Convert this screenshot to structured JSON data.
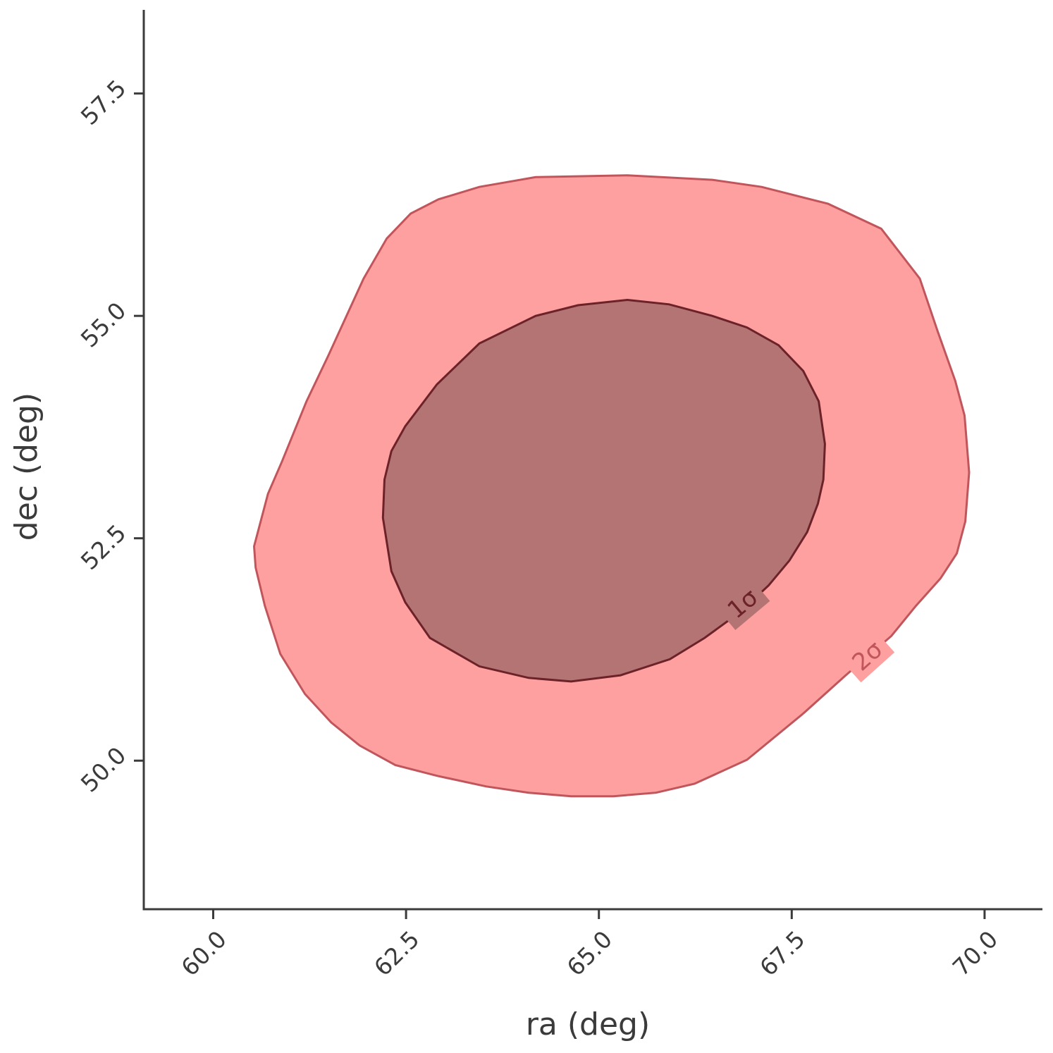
{
  "chart_data": {
    "type": "contour",
    "xlabel": "ra (deg)",
    "ylabel": "dec (deg)",
    "xlim": [
      59.1,
      70.75
    ],
    "ylim": [
      48.33,
      58.44
    ],
    "xticks": [
      {
        "value": 60,
        "label": "60.0"
      },
      62.5,
      {
        "value": 65,
        "label": "65.0"
      },
      67.5,
      {
        "value": 70,
        "label": "70.0"
      }
    ],
    "yticks": [
      {
        "value": 50,
        "label": "50.0"
      },
      52.5,
      {
        "value": 55,
        "label": "55.0"
      },
      57.5
    ],
    "series": [
      {
        "name": "2σ",
        "color": "#fea0a0",
        "edgecolor": "#c0565c",
        "x": [
          60.53,
          60.71,
          60.89,
          61.21,
          61.49,
          61.95,
          62.25,
          62.56,
          62.92,
          63.45,
          64.18,
          65.37,
          66.47,
          67.11,
          67.97,
          68.66,
          69.16,
          69.39,
          69.62,
          69.74,
          69.8,
          69.75,
          69.64,
          69.43,
          69.11,
          68.79,
          68.2,
          67.65,
          66.92,
          66.24,
          65.74,
          65.19,
          64.64,
          64.09,
          63.54,
          62.9,
          62.36,
          61.9,
          61.53,
          61.19,
          60.87,
          60.67,
          60.55
        ],
        "y": [
          52.41,
          53.0,
          53.36,
          54.04,
          54.55,
          55.42,
          55.87,
          56.15,
          56.31,
          56.45,
          56.56,
          56.58,
          56.53,
          56.45,
          56.26,
          55.98,
          55.42,
          54.83,
          54.27,
          53.88,
          53.24,
          52.69,
          52.33,
          52.05,
          51.74,
          51.4,
          50.96,
          50.53,
          50.01,
          49.74,
          49.64,
          49.6,
          49.6,
          49.64,
          49.71,
          49.83,
          49.95,
          50.17,
          50.43,
          50.75,
          51.2,
          51.74,
          52.17
        ]
      },
      {
        "name": "1σ",
        "color": "#b57474",
        "edgecolor": "#6b2228",
        "x": [
          62.2,
          62.22,
          62.31,
          62.49,
          62.9,
          63.45,
          64.18,
          64.73,
          65.37,
          65.91,
          66.47,
          66.92,
          67.33,
          67.65,
          67.85,
          67.93,
          67.91,
          67.84,
          67.7,
          67.47,
          67.2,
          66.83,
          66.37,
          65.92,
          65.28,
          64.64,
          64.09,
          63.45,
          62.81,
          62.49,
          62.31
        ],
        "y": [
          52.73,
          53.16,
          53.48,
          53.76,
          54.23,
          54.69,
          55.0,
          55.12,
          55.18,
          55.13,
          55.0,
          54.87,
          54.67,
          54.38,
          54.04,
          53.56,
          53.16,
          52.89,
          52.57,
          52.25,
          51.97,
          51.67,
          51.38,
          51.14,
          50.96,
          50.89,
          50.93,
          51.06,
          51.38,
          51.78,
          52.13
        ]
      }
    ]
  }
}
